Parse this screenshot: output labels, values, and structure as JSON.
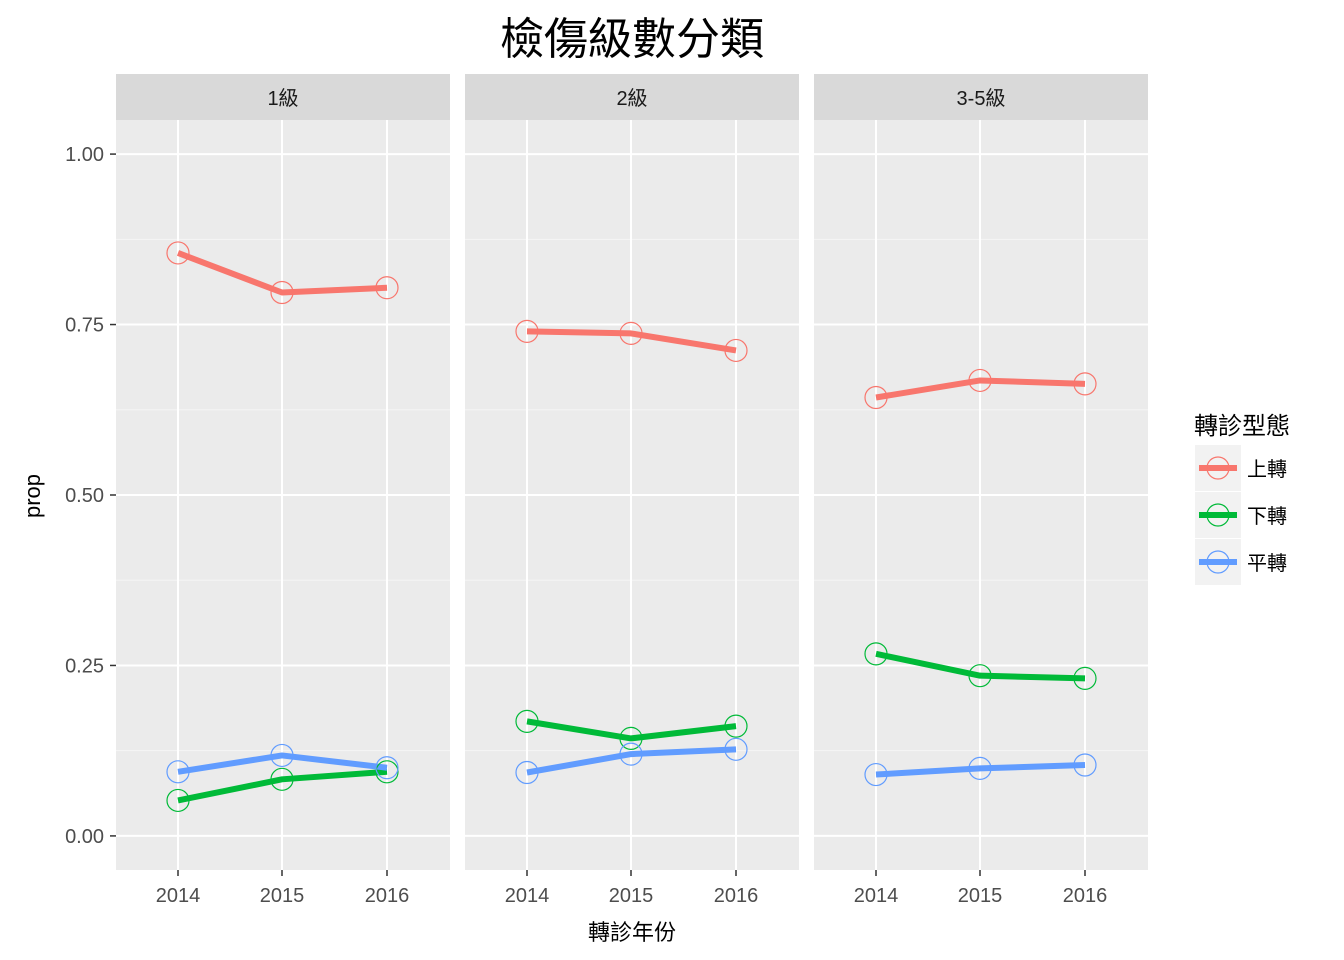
{
  "chart_data": {
    "type": "line",
    "title": "檢傷級數分類",
    "xlabel": "轉診年份",
    "ylabel": "prop",
    "x": [
      "2014",
      "2015",
      "2016"
    ],
    "ylim": [
      -0.05,
      1.05
    ],
    "yticks": [
      0.0,
      0.25,
      0.5,
      0.75,
      1.0
    ],
    "ytick_labels": [
      "0.00",
      "0.25",
      "0.50",
      "0.75",
      "1.00"
    ],
    "grid": true,
    "legend": {
      "title": "轉診型態",
      "placement": "right",
      "entries": [
        "上轉",
        "下轉",
        "平轉"
      ]
    },
    "colors": {
      "上轉": "#F8766D",
      "下轉": "#00BA38",
      "平轉": "#619CFF"
    },
    "panels": [
      {
        "label": "1級",
        "series": [
          {
            "name": "上轉",
            "values": [
              0.855,
              0.797,
              0.804
            ]
          },
          {
            "name": "下轉",
            "values": [
              0.052,
              0.083,
              0.094
            ]
          },
          {
            "name": "平轉",
            "values": [
              0.094,
              0.118,
              0.1
            ]
          }
        ]
      },
      {
        "label": "2級",
        "series": [
          {
            "name": "上轉",
            "values": [
              0.74,
              0.737,
              0.712
            ]
          },
          {
            "name": "下轉",
            "values": [
              0.168,
              0.143,
              0.161
            ]
          },
          {
            "name": "平轉",
            "values": [
              0.093,
              0.12,
              0.127
            ]
          }
        ]
      },
      {
        "label": "3-5級",
        "series": [
          {
            "name": "上轉",
            "values": [
              0.643,
              0.668,
              0.663
            ]
          },
          {
            "name": "下轉",
            "values": [
              0.267,
              0.235,
              0.231
            ]
          },
          {
            "name": "平轉",
            "values": [
              0.09,
              0.099,
              0.104
            ]
          }
        ]
      }
    ]
  }
}
